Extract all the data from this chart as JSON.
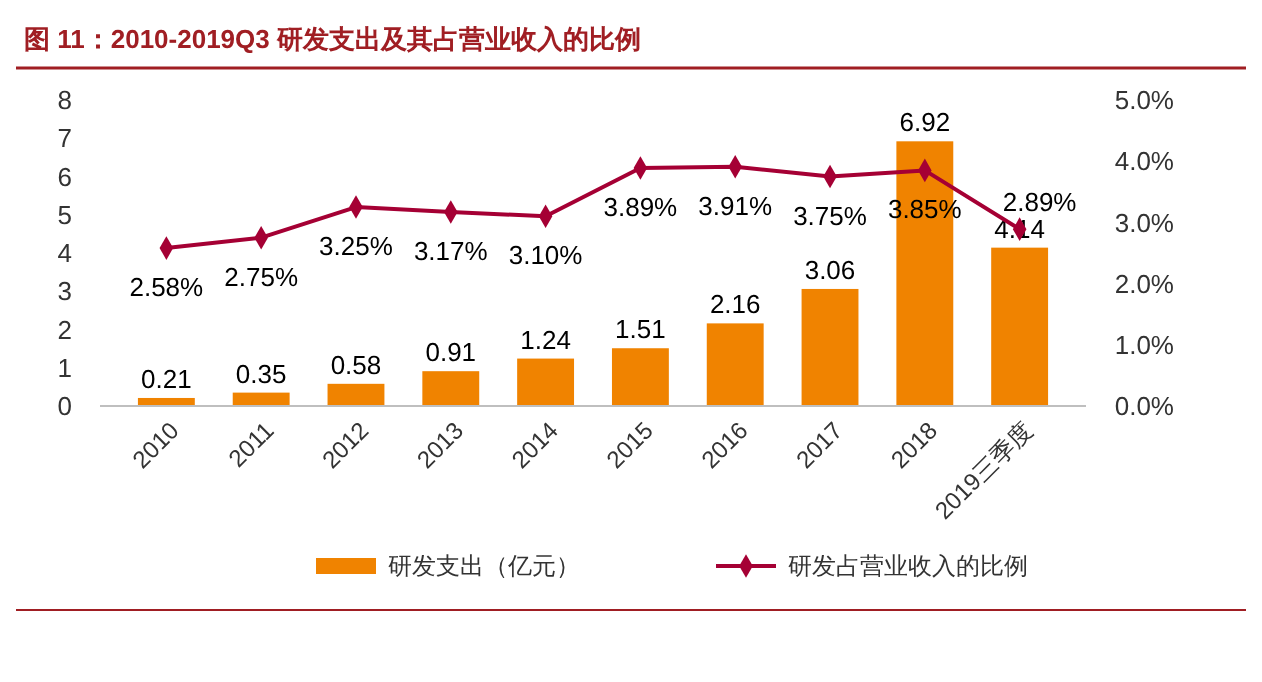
{
  "chart_data": {
    "type": "bar",
    "title": "图 11：2010-2019Q3 研发支出及其占营业收入的比例",
    "categories": [
      "2010",
      "2011",
      "2012",
      "2013",
      "2014",
      "2015",
      "2016",
      "2017",
      "2018",
      "2019三季度"
    ],
    "series": [
      {
        "name": "研发支出（亿元）",
        "color": "#f08300",
        "values": [
          0.21,
          0.35,
          0.58,
          0.91,
          1.24,
          1.51,
          2.16,
          3.06,
          6.92,
          4.14
        ],
        "value_labels": [
          "0.21",
          "0.35",
          "0.58",
          "0.91",
          "1.24",
          "1.51",
          "2.16",
          "3.06",
          "6.92",
          "4.14"
        ]
      },
      {
        "name": "研发占营业收入的比例",
        "type": "line",
        "axis": "y2",
        "color": "#a50034",
        "values": [
          2.58,
          2.75,
          3.25,
          3.17,
          3.1,
          3.89,
          3.91,
          3.75,
          3.85,
          2.89
        ],
        "value_labels": [
          "2.58%",
          "2.75%",
          "3.25%",
          "3.17%",
          "3.10%",
          "3.89%",
          "3.91%",
          "3.75%",
          "3.85%",
          "2.89%"
        ]
      }
    ],
    "ylim": [
      0,
      8
    ],
    "yticks": [
      0,
      1,
      2,
      3,
      4,
      5,
      6,
      7,
      8
    ],
    "y2lim": [
      0,
      5
    ],
    "y2ticks": [
      {
        "value": 0,
        "label": "0.0%"
      },
      {
        "value": 1,
        "label": "1.0%"
      },
      {
        "value": 2,
        "label": "2.0%"
      },
      {
        "value": 3,
        "label": "3.0%"
      },
      {
        "value": 4,
        "label": "4.0%"
      },
      {
        "value": 5,
        "label": "5.0%"
      }
    ],
    "marker": "diamond",
    "legend": "bottom",
    "grid": false
  }
}
